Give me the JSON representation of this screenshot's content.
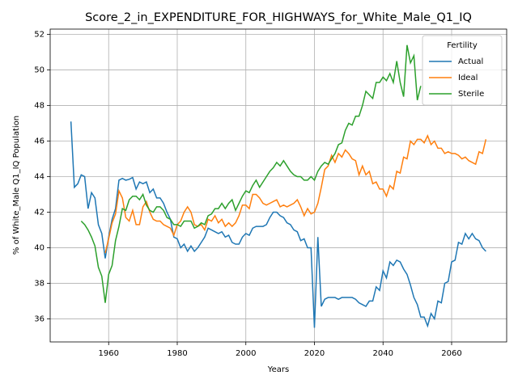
{
  "chart_data": {
    "type": "line",
    "title": "Score_2_in_EXPENDITURE_FOR_HIGHWAYS_for_White_Male_Q1_IQ",
    "xlabel": "Years",
    "ylabel": "% of White_Male Q1_IQ Population",
    "legend_title": "Fertility",
    "legend_loc": "upper right",
    "grid": true,
    "xlim": [
      1942.95,
      2076.05
    ],
    "ylim": [
      34.7,
      52.3
    ],
    "xticks": [
      1960,
      1980,
      2000,
      2020,
      2040,
      2060
    ],
    "yticks": [
      36,
      38,
      40,
      42,
      44,
      46,
      48,
      50,
      52
    ],
    "x": [
      1949,
      1950,
      1951,
      1952,
      1953,
      1954,
      1955,
      1956,
      1957,
      1958,
      1959,
      1960,
      1961,
      1962,
      1963,
      1964,
      1965,
      1966,
      1967,
      1968,
      1969,
      1970,
      1971,
      1972,
      1973,
      1974,
      1975,
      1976,
      1977,
      1978,
      1979,
      1980,
      1981,
      1982,
      1983,
      1984,
      1985,
      1986,
      1987,
      1988,
      1989,
      1990,
      1991,
      1992,
      1993,
      1994,
      1995,
      1996,
      1997,
      1998,
      1999,
      2000,
      2001,
      2002,
      2003,
      2004,
      2005,
      2006,
      2007,
      2008,
      2009,
      2010,
      2011,
      2012,
      2013,
      2014,
      2015,
      2016,
      2017,
      2018,
      2019,
      2020,
      2021,
      2022,
      2023,
      2024,
      2025,
      2026,
      2027,
      2028,
      2029,
      2030,
      2031,
      2032,
      2033,
      2034,
      2035,
      2036,
      2037,
      2038,
      2039,
      2040,
      2041,
      2042,
      2043,
      2044,
      2045,
      2046,
      2047,
      2048,
      2049,
      2050,
      2051,
      2052,
      2053,
      2054,
      2055,
      2056,
      2057,
      2058,
      2059,
      2060,
      2061,
      2062,
      2063,
      2064,
      2065,
      2066,
      2067,
      2068,
      2069,
      2070
    ],
    "series": [
      {
        "name": "Actual",
        "color": "#1f77b4",
        "values": [
          47.1,
          43.4,
          43.6,
          44.1,
          44.0,
          42.2,
          43.1,
          42.8,
          41.3,
          40.8,
          39.4,
          40.6,
          41.6,
          42.2,
          43.8,
          43.9,
          43.8,
          43.85,
          43.95,
          43.3,
          43.7,
          43.6,
          43.7,
          43.1,
          43.3,
          42.8,
          42.8,
          42.5,
          42.0,
          41.6,
          40.6,
          40.5,
          40.0,
          40.2,
          39.8,
          40.1,
          39.8,
          40.0,
          40.3,
          40.6,
          41.1,
          41.0,
          40.9,
          40.8,
          40.9,
          40.6,
          40.7,
          40.3,
          40.2,
          40.2,
          40.6,
          40.8,
          40.7,
          41.1,
          41.2,
          41.2,
          41.2,
          41.3,
          41.7,
          42.0,
          42.0,
          41.8,
          41.7,
          41.4,
          41.3,
          41.0,
          40.9,
          40.4,
          40.5,
          40.0,
          40.0,
          35.5,
          40.6,
          36.7,
          37.1,
          37.2,
          37.2,
          37.2,
          37.1,
          37.2,
          37.2,
          37.2,
          37.2,
          37.1,
          36.9,
          36.8,
          36.7,
          37.0,
          37.0,
          37.8,
          37.6,
          38.7,
          38.3,
          39.2,
          39.0,
          39.3,
          39.2,
          38.8,
          38.5,
          37.9,
          37.2,
          36.8,
          36.1,
          36.1,
          35.6,
          36.3,
          36.0,
          37.0,
          36.9,
          38.0,
          38.1,
          39.2,
          39.3,
          40.3,
          40.2,
          40.8,
          40.5,
          40.8,
          40.5,
          40.4,
          40.0,
          39.8
        ]
      },
      {
        "name": "Ideal",
        "color": "#ff7f0e",
        "values": [
          null,
          null,
          null,
          null,
          null,
          null,
          null,
          null,
          null,
          null,
          39.7,
          40.5,
          41.4,
          41.9,
          43.2,
          42.8,
          41.7,
          41.5,
          42.1,
          41.3,
          41.3,
          42.3,
          42.6,
          42.0,
          41.6,
          41.5,
          41.5,
          41.3,
          41.2,
          41.1,
          40.7,
          41.3,
          41.5,
          42.0,
          42.3,
          42.0,
          41.3,
          41.2,
          41.3,
          41.0,
          41.6,
          41.5,
          41.8,
          41.4,
          41.6,
          41.2,
          41.4,
          41.2,
          41.4,
          41.8,
          42.4,
          42.4,
          42.2,
          43.0,
          43.0,
          42.8,
          42.5,
          42.4,
          42.5,
          42.6,
          42.7,
          42.3,
          42.4,
          42.3,
          42.4,
          42.5,
          42.7,
          42.3,
          41.8,
          42.2,
          41.9,
          42.0,
          42.5,
          43.4,
          44.4,
          44.6,
          45.2,
          44.8,
          45.3,
          45.1,
          45.5,
          45.3,
          45.0,
          44.9,
          44.1,
          44.6,
          44.1,
          44.3,
          43.6,
          43.7,
          43.3,
          43.3,
          42.9,
          43.5,
          43.3,
          44.3,
          44.2,
          45.1,
          45.0,
          46.0,
          45.8,
          46.1,
          46.1,
          45.9,
          46.3,
          45.8,
          46.0,
          45.6,
          45.6,
          45.3,
          45.4,
          45.3,
          45.3,
          45.2,
          45.0,
          45.1,
          44.9,
          44.8,
          44.7,
          45.4,
          45.3,
          46.1
        ]
      },
      {
        "name": "Sterile",
        "color": "#2ca02c",
        "values": [
          null,
          null,
          null,
          41.5,
          41.3,
          41.0,
          40.6,
          40.1,
          38.9,
          38.4,
          36.9,
          38.5,
          39.0,
          40.4,
          41.2,
          42.2,
          42.1,
          42.7,
          42.9,
          42.9,
          42.7,
          43.0,
          42.4,
          42.1,
          42.0,
          42.3,
          42.3,
          42.1,
          41.7,
          41.6,
          41.3,
          41.3,
          41.2,
          41.5,
          41.5,
          41.5,
          41.1,
          41.2,
          41.4,
          41.3,
          41.8,
          41.9,
          42.2,
          42.2,
          42.5,
          42.2,
          42.5,
          42.7,
          42.1,
          42.5,
          42.9,
          43.2,
          43.1,
          43.5,
          43.8,
          43.4,
          43.7,
          44.0,
          44.3,
          44.5,
          44.8,
          44.6,
          44.9,
          44.6,
          44.3,
          44.1,
          44.0,
          44.0,
          43.8,
          43.8,
          44.0,
          43.8,
          44.3,
          44.6,
          44.8,
          44.7,
          45.0,
          45.3,
          45.8,
          45.9,
          46.6,
          47.0,
          46.9,
          47.4,
          47.4,
          48.0,
          48.8,
          48.6,
          48.4,
          49.3,
          49.3,
          49.6,
          49.4,
          49.8,
          49.3,
          50.5,
          49.3,
          48.5,
          51.4,
          50.4,
          50.8,
          48.3,
          49.1,
          null,
          null,
          null,
          null,
          null,
          null,
          null,
          null,
          null,
          null,
          null,
          null,
          null,
          null,
          null,
          null,
          null,
          null,
          null
        ]
      }
    ]
  }
}
